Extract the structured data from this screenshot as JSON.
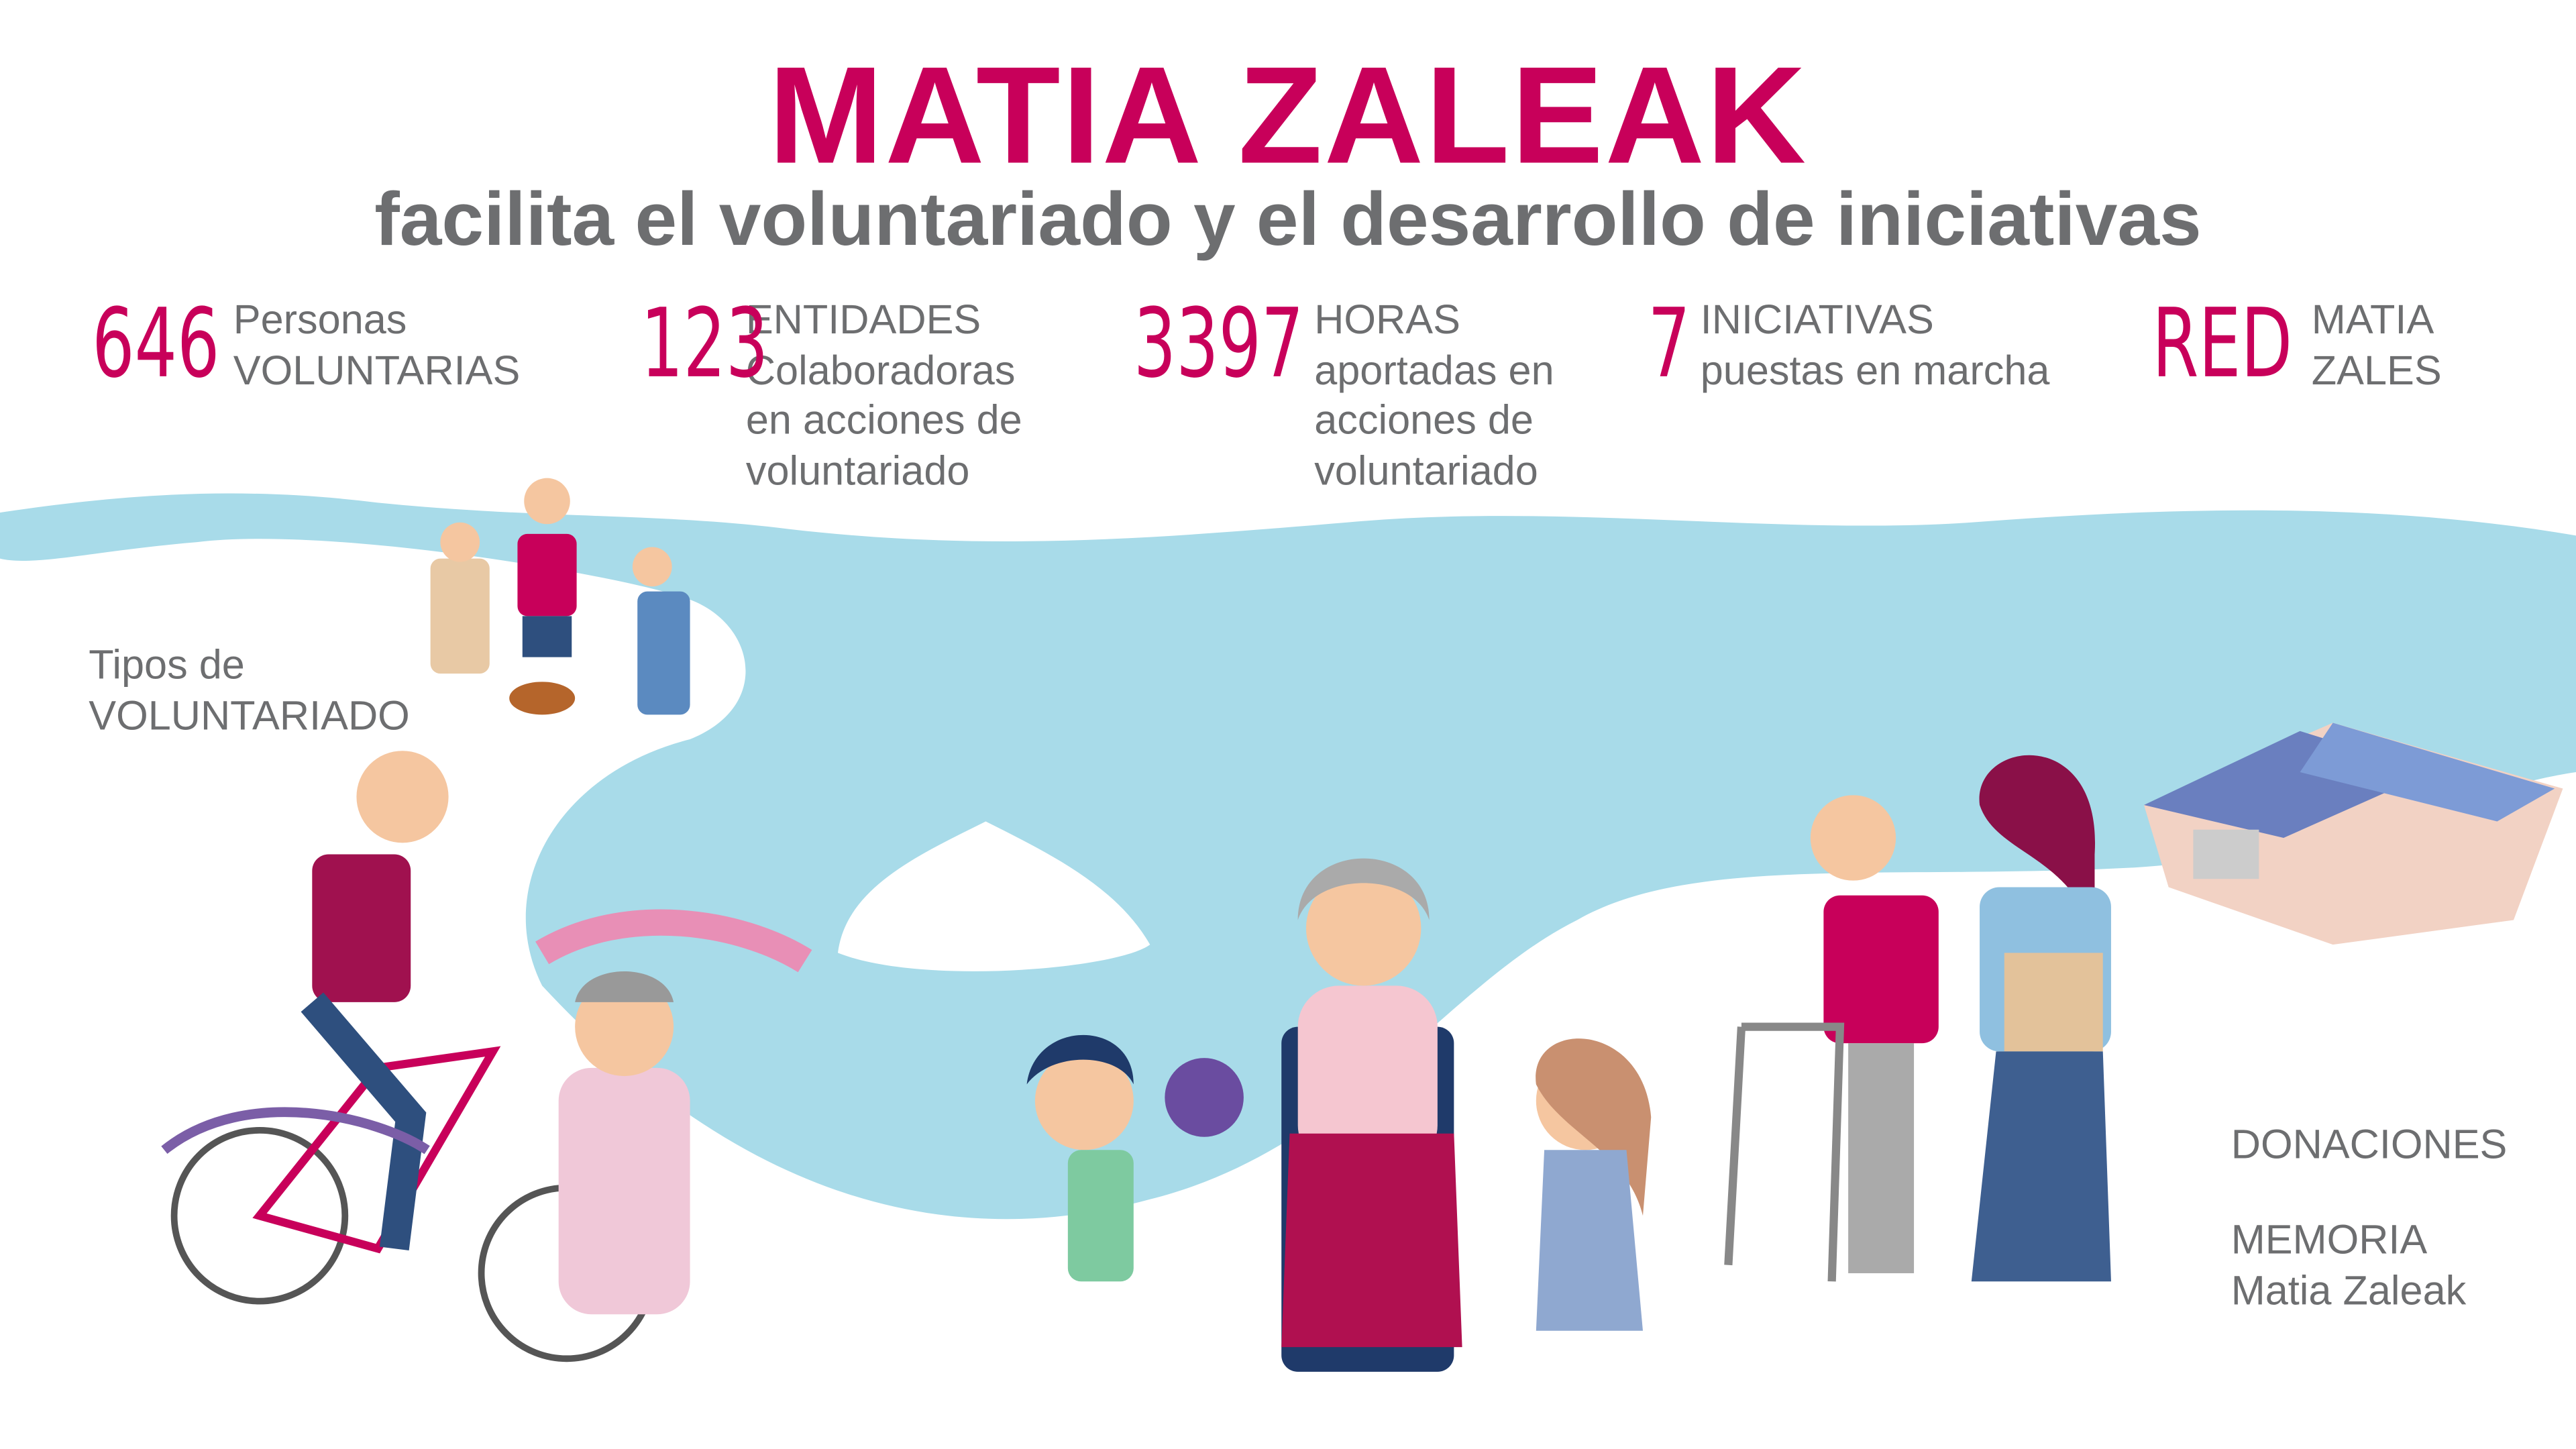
{
  "header": {
    "title": "MATIA ZALEAK",
    "subtitle": "facilita el voluntariado y el desarrollo de iniciativas"
  },
  "stats": [
    {
      "number": "646",
      "lines": [
        "Personas",
        "VOLUNTARIAS"
      ]
    },
    {
      "number": "123",
      "lines": [
        "ENTIDADES",
        "Colaboradoras",
        "en acciones de",
        "voluntariado"
      ]
    },
    {
      "number": "3397",
      "lines": [
        "HORAS",
        "aportadas en",
        "acciones de",
        "voluntariado"
      ]
    },
    {
      "number": "7",
      "lines": [
        "INICIATIVAS",
        "puestas en marcha"
      ]
    },
    {
      "number": "RED",
      "lines": [
        "MATIA",
        "ZALES"
      ]
    }
  ],
  "links": {
    "tipos": [
      "Tipos de",
      "VOLUNTARIADO"
    ],
    "donaciones": "DONACIONES",
    "memoria": [
      "MEMORIA",
      "Matia Zaleak"
    ]
  },
  "colors": {
    "accent": "#c8005a",
    "text": "#6d6e70",
    "river": "#a8dbe9"
  }
}
